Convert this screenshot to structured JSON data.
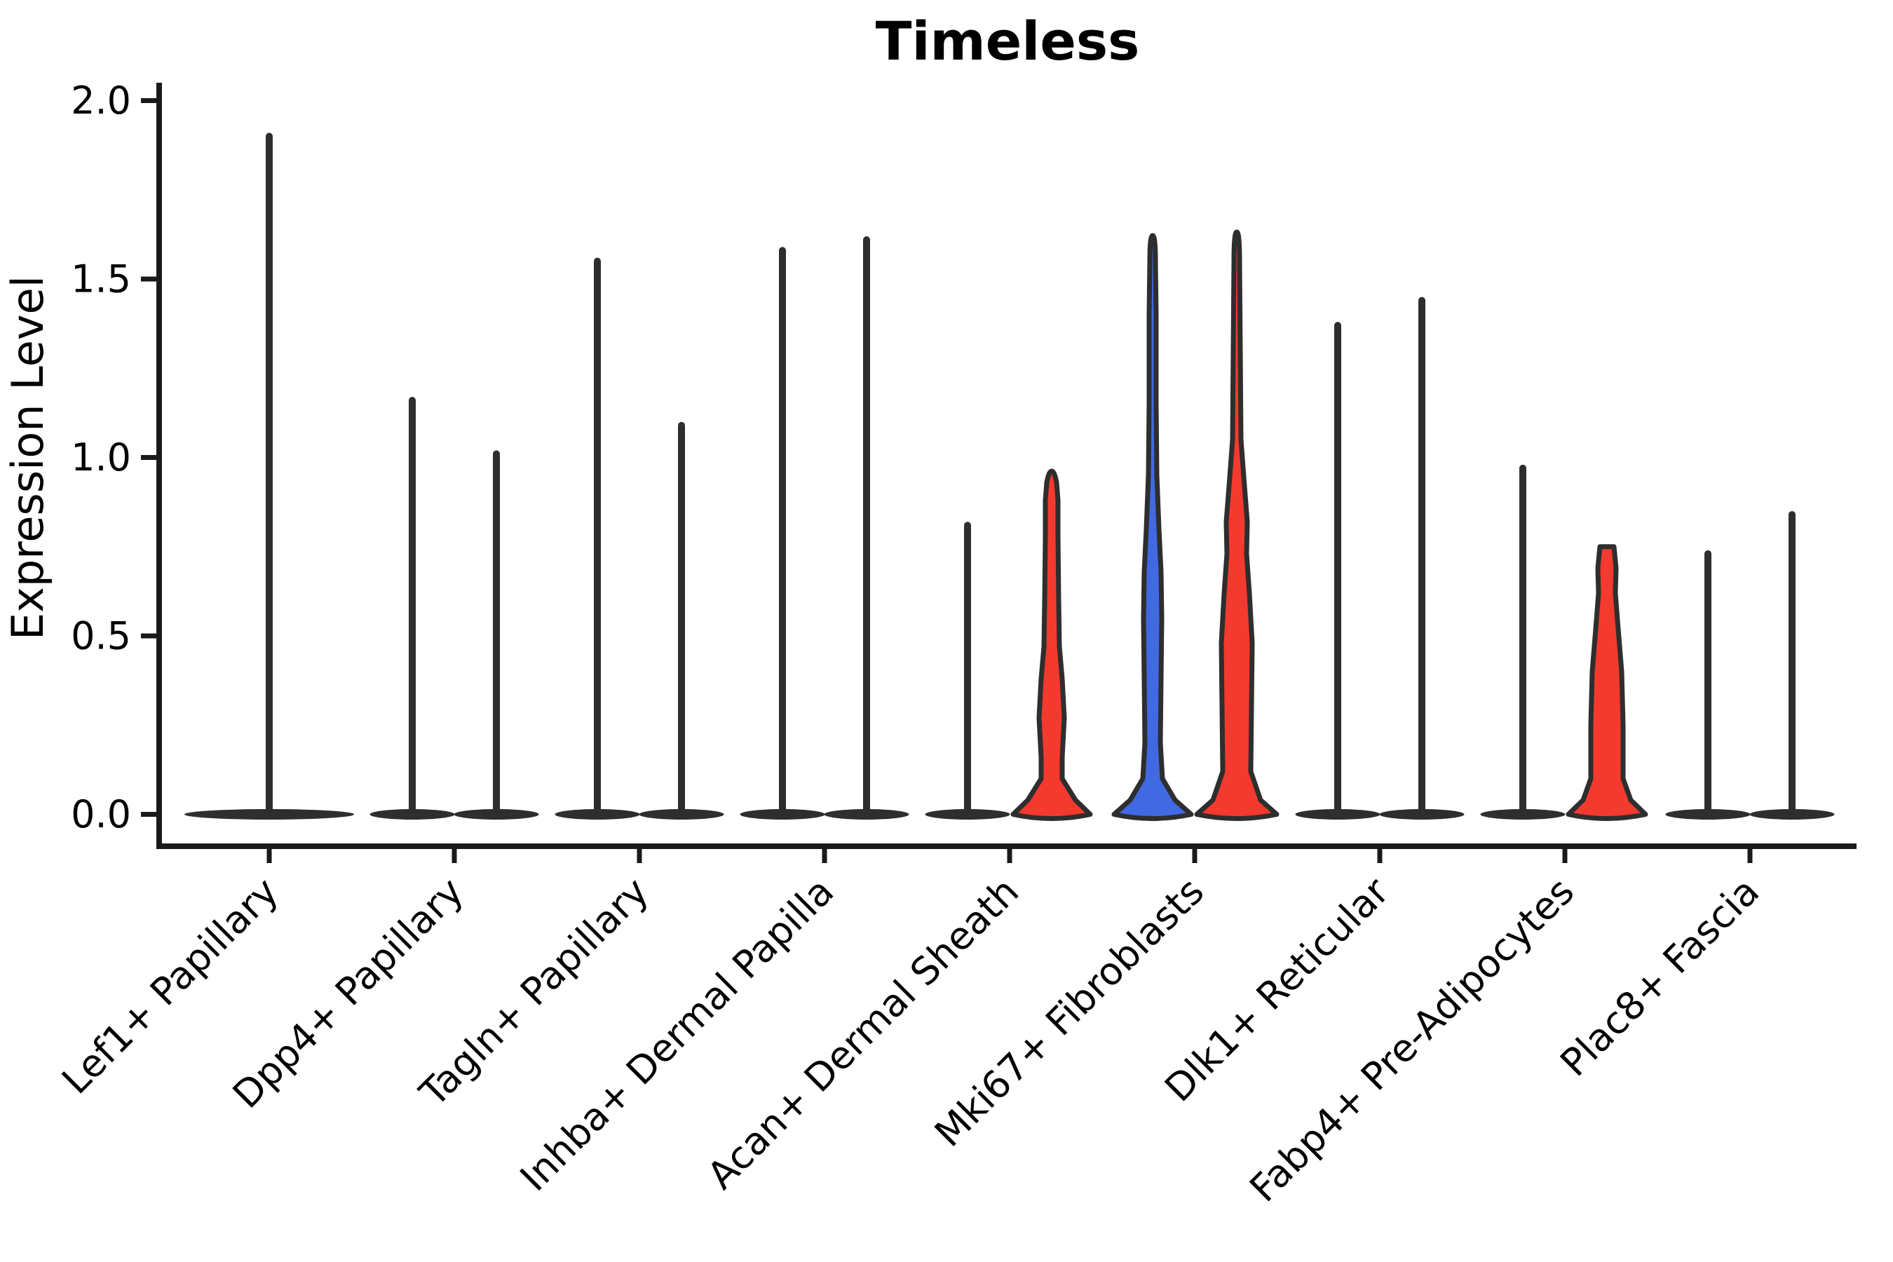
{
  "chart_data": {
    "type": "violin",
    "title": "Timeless",
    "ylabel": "Expression Level",
    "xlabel": "",
    "grid": false,
    "legend": "none",
    "ylim": [
      0.0,
      2.05
    ],
    "yticks": [
      0.0,
      0.5,
      1.0,
      1.5,
      2.0
    ],
    "ytick_labels": [
      "0.0",
      "0.5",
      "1.0",
      "1.5",
      "2.0"
    ],
    "categories": [
      "Lef1+ Papillary",
      "Dpp4+ Papillary",
      "Tagln+ Papillary",
      "Inhba+ Dermal Papilla",
      "Acan+ Dermal Sheath",
      "Mki67+ Fibroblasts",
      "Dlk1+ Reticular",
      "Fabp4+ Pre-Adipocytes",
      "Plac8+ Fascia"
    ],
    "colors": {
      "red": "#F43A2E",
      "blue": "#4169E1",
      "dark": "#2E2E2E",
      "spine": "#1A1A1A"
    },
    "violins": [
      {
        "category_index": 0,
        "side": "single",
        "shape": "spike",
        "max": 1.9,
        "color": "dark"
      },
      {
        "category_index": 1,
        "side": "left",
        "shape": "spike",
        "max": 1.16,
        "color": "dark"
      },
      {
        "category_index": 1,
        "side": "right",
        "shape": "spike",
        "max": 1.01,
        "color": "dark"
      },
      {
        "category_index": 2,
        "side": "left",
        "shape": "spike",
        "max": 1.55,
        "color": "dark"
      },
      {
        "category_index": 2,
        "side": "right",
        "shape": "spike",
        "max": 1.09,
        "color": "dark"
      },
      {
        "category_index": 3,
        "side": "left",
        "shape": "spike",
        "max": 1.58,
        "color": "dark"
      },
      {
        "category_index": 3,
        "side": "right",
        "shape": "spike",
        "max": 1.61,
        "color": "dark"
      },
      {
        "category_index": 4,
        "side": "left",
        "shape": "spike",
        "max": 0.81,
        "color": "dark"
      },
      {
        "category_index": 4,
        "side": "right",
        "shape": "violin",
        "max": 0.95,
        "color": "red",
        "profile": [
          [
            0,
            55
          ],
          [
            0.04,
            34
          ],
          [
            0.1,
            15
          ],
          [
            0.16,
            15
          ],
          [
            0.27,
            18
          ],
          [
            0.38,
            15
          ],
          [
            0.47,
            11
          ],
          [
            0.6,
            10
          ],
          [
            0.78,
            9
          ],
          [
            0.88,
            9
          ],
          [
            0.93,
            7
          ]
        ]
      },
      {
        "category_index": 5,
        "side": "left",
        "shape": "violin",
        "max": 1.61,
        "color": "blue",
        "profile": [
          [
            0,
            55
          ],
          [
            0.04,
            32
          ],
          [
            0.1,
            14
          ],
          [
            0.2,
            11
          ],
          [
            0.38,
            12
          ],
          [
            0.55,
            13
          ],
          [
            0.68,
            12
          ],
          [
            0.8,
            9
          ],
          [
            0.95,
            6
          ],
          [
            1.15,
            5
          ],
          [
            1.4,
            5
          ],
          [
            1.55,
            4
          ]
        ]
      },
      {
        "category_index": 5,
        "side": "right",
        "shape": "violin",
        "max": 1.62,
        "color": "red",
        "profile": [
          [
            0,
            57
          ],
          [
            0.04,
            34
          ],
          [
            0.12,
            20
          ],
          [
            0.3,
            21
          ],
          [
            0.48,
            22
          ],
          [
            0.62,
            18
          ],
          [
            0.73,
            14
          ],
          [
            0.82,
            15
          ],
          [
            0.92,
            11
          ],
          [
            1.05,
            6
          ],
          [
            1.3,
            5
          ],
          [
            1.55,
            4
          ]
        ]
      },
      {
        "category_index": 6,
        "side": "left",
        "shape": "spike",
        "max": 1.37,
        "color": "dark"
      },
      {
        "category_index": 6,
        "side": "right",
        "shape": "spike",
        "max": 1.44,
        "color": "dark"
      },
      {
        "category_index": 7,
        "side": "left",
        "shape": "spike",
        "max": 0.97,
        "color": "dark"
      },
      {
        "category_index": 7,
        "side": "right",
        "shape": "violin",
        "max": 0.75,
        "color": "red",
        "flat_top": true,
        "profile": [
          [
            0,
            55
          ],
          [
            0.04,
            34
          ],
          [
            0.1,
            23
          ],
          [
            0.25,
            23
          ],
          [
            0.4,
            21
          ],
          [
            0.52,
            16
          ],
          [
            0.62,
            12
          ],
          [
            0.69,
            13
          ],
          [
            0.75,
            10
          ]
        ]
      },
      {
        "category_index": 8,
        "side": "left",
        "shape": "spike",
        "max": 0.73,
        "color": "dark"
      },
      {
        "category_index": 8,
        "side": "right",
        "shape": "spike",
        "max": 0.84,
        "color": "dark"
      }
    ]
  }
}
